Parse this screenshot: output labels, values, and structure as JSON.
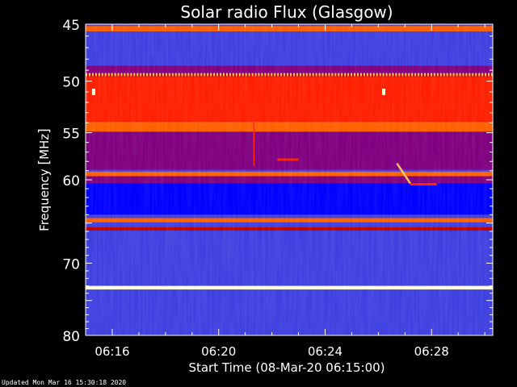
{
  "chart_data": {
    "type": "heatmap",
    "title": "Solar radio Flux (Glasgow)",
    "ylabel_prefix": "Frequency ",
    "ylabel_unit": "MHz",
    "xlabel": "Start Time (08-Mar-20 06:15:00)",
    "y_axis": {
      "scale": "log",
      "range_mhz": [
        45,
        80
      ],
      "direction": "top-to-bottom",
      "tick_labels": [
        "45",
        "50",
        "55",
        "60",
        "70",
        "80"
      ],
      "tick_values": [
        45,
        50,
        55,
        60,
        70,
        80
      ]
    },
    "x_axis": {
      "range_minutes_after_start": [
        0,
        15.3
      ],
      "tick_labels": [
        "06:16",
        "06:20",
        "06:24",
        "06:28"
      ],
      "tick_values": [
        1,
        5,
        9,
        13
      ]
    },
    "colormap": [
      "#000080",
      "#0000ff",
      "#4040e0",
      "#800080",
      "#c00000",
      "#ff2000",
      "#ff6000",
      "#ffc060",
      "#ffffe0"
    ],
    "background_level": 0.2,
    "bands": [
      {
        "f0": 45.15,
        "f1": 45.6,
        "level": 0.72
      },
      {
        "f0": 48.6,
        "f1": 49.3,
        "level": 0.42
      },
      {
        "f0": 49.3,
        "f1": 49.6,
        "level": 0.5
      },
      {
        "f0": 49.6,
        "f1": 53.9,
        "level": 0.58
      },
      {
        "f0": 53.9,
        "f1": 54.9,
        "level": 0.78
      },
      {
        "f0": 54.9,
        "f1": 58.9,
        "level": 0.38
      },
      {
        "f0": 59.1,
        "f1": 59.6,
        "level": 0.8
      },
      {
        "f0": 59.6,
        "f1": 60.4,
        "level": 0.34
      },
      {
        "f0": 60.4,
        "f1": 64.0,
        "level": 0.18
      },
      {
        "f0": 64.4,
        "f1": 64.9,
        "level": 0.8
      },
      {
        "f0": 65.5,
        "f1": 65.9,
        "level": 0.46
      },
      {
        "f0": 65.9,
        "f1": 73.0,
        "level": 0.22
      },
      {
        "f0": 73.0,
        "f1": 73.5,
        "level": 0.98
      },
      {
        "f0": 73.5,
        "f1": 80.0,
        "level": 0.3
      }
    ],
    "features": [
      {
        "kind": "pulse_train",
        "f": 49.4,
        "t0": 0,
        "t1": 15.3,
        "level": 0.9
      },
      {
        "kind": "spot",
        "f": 51.0,
        "t": 0.3,
        "level": 0.95
      },
      {
        "kind": "spot",
        "f": 51.0,
        "t": 11.2,
        "level": 0.95
      },
      {
        "kind": "vertical_line",
        "t": 6.3,
        "f0": 49.5,
        "f1": 58.5,
        "level": 0.6
      },
      {
        "kind": "segment",
        "f": 57.8,
        "t0": 7.2,
        "t1": 8.0,
        "level": 0.62
      },
      {
        "kind": "drift_burst",
        "t0": 11.7,
        "f0": 58.2,
        "t1": 12.2,
        "f1": 60.4,
        "level": 0.92
      },
      {
        "kind": "segment",
        "f": 60.5,
        "t0": 12.2,
        "t1": 13.2,
        "level": 0.65
      }
    ]
  },
  "footer": "Updated Mon Mar 16 15:30:18 2020"
}
